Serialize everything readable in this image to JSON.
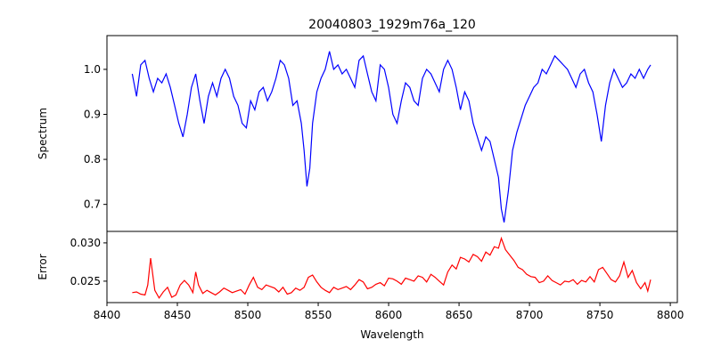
{
  "chart_data": {
    "type": "line",
    "title": "20040803_1929m76a_120",
    "xlabel": "Wavelength",
    "xlim": [
      8400,
      8805
    ],
    "xticks": [
      8400,
      8450,
      8500,
      8550,
      8600,
      8650,
      8700,
      8750,
      8800
    ],
    "panels": [
      {
        "name": "spectrum-panel",
        "ylabel": "Spectrum",
        "ylim": [
          0.64,
          1.075
        ],
        "yticks": [
          0.7,
          0.8,
          0.9,
          1.0
        ],
        "ytick_labels": [
          "0.7",
          "0.8",
          "0.9",
          "1.0"
        ],
        "color": "#0000ff",
        "x": [
          8418,
          8421,
          8424,
          8427,
          8430,
          8433,
          8436,
          8439,
          8442,
          8445,
          8448,
          8451,
          8454,
          8457,
          8460,
          8463,
          8466,
          8469,
          8472,
          8475,
          8478,
          8481,
          8484,
          8487,
          8490,
          8493,
          8496,
          8499,
          8502,
          8505,
          8508,
          8511,
          8514,
          8517,
          8520,
          8523,
          8526,
          8529,
          8532,
          8535,
          8538,
          8540,
          8542,
          8544,
          8546,
          8549,
          8552,
          8555,
          8558,
          8561,
          8564,
          8567,
          8570,
          8573,
          8576,
          8579,
          8582,
          8585,
          8588,
          8591,
          8594,
          8597,
          8600,
          8603,
          8606,
          8609,
          8612,
          8615,
          8618,
          8621,
          8624,
          8627,
          8630,
          8633,
          8636,
          8639,
          8642,
          8645,
          8648,
          8651,
          8654,
          8657,
          8660,
          8663,
          8666,
          8669,
          8672,
          8675,
          8678,
          8680,
          8682,
          8685,
          8688,
          8691,
          8694,
          8697,
          8700,
          8703,
          8706,
          8709,
          8712,
          8715,
          8718,
          8721,
          8724,
          8727,
          8730,
          8733,
          8736,
          8739,
          8742,
          8745,
          8748,
          8751,
          8754,
          8757,
          8760,
          8763,
          8766,
          8769,
          8772,
          8775,
          8778,
          8781,
          8784,
          8786
        ],
        "y": [
          0.99,
          0.94,
          1.01,
          1.02,
          0.98,
          0.95,
          0.98,
          0.97,
          0.99,
          0.96,
          0.92,
          0.88,
          0.85,
          0.9,
          0.96,
          0.99,
          0.93,
          0.88,
          0.94,
          0.97,
          0.94,
          0.98,
          1.0,
          0.98,
          0.94,
          0.92,
          0.88,
          0.87,
          0.93,
          0.91,
          0.95,
          0.96,
          0.93,
          0.95,
          0.98,
          1.02,
          1.01,
          0.98,
          0.92,
          0.93,
          0.88,
          0.82,
          0.74,
          0.78,
          0.88,
          0.95,
          0.98,
          1.0,
          1.04,
          1.0,
          1.01,
          0.99,
          1.0,
          0.98,
          0.96,
          1.02,
          1.03,
          0.99,
          0.95,
          0.93,
          1.01,
          1.0,
          0.96,
          0.9,
          0.88,
          0.93,
          0.97,
          0.96,
          0.93,
          0.92,
          0.98,
          1.0,
          0.99,
          0.97,
          0.95,
          1.0,
          1.02,
          1.0,
          0.96,
          0.91,
          0.95,
          0.93,
          0.88,
          0.85,
          0.82,
          0.85,
          0.84,
          0.8,
          0.76,
          0.69,
          0.66,
          0.73,
          0.82,
          0.86,
          0.89,
          0.92,
          0.94,
          0.96,
          0.97,
          1.0,
          0.99,
          1.01,
          1.03,
          1.02,
          1.01,
          1.0,
          0.98,
          0.96,
          0.99,
          1.0,
          0.97,
          0.95,
          0.9,
          0.84,
          0.92,
          0.97,
          1.0,
          0.98,
          0.96,
          0.97,
          0.99,
          0.98,
          1.0,
          0.98,
          1.0,
          1.01
        ]
      },
      {
        "name": "error-panel",
        "ylabel": "Error",
        "ylim": [
          0.0222,
          0.0315
        ],
        "yticks": [
          0.025,
          0.03
        ],
        "ytick_labels": [
          "0.025",
          "0.030"
        ],
        "color": "#ff0000",
        "x": [
          8418,
          8421,
          8424,
          8427,
          8429,
          8431,
          8434,
          8437,
          8440,
          8443,
          8446,
          8449,
          8452,
          8455,
          8458,
          8461,
          8463,
          8465,
          8468,
          8471,
          8474,
          8477,
          8480,
          8483,
          8486,
          8489,
          8492,
          8495,
          8498,
          8501,
          8504,
          8507,
          8510,
          8513,
          8516,
          8519,
          8522,
          8525,
          8528,
          8531,
          8534,
          8537,
          8540,
          8543,
          8546,
          8549,
          8552,
          8555,
          8558,
          8561,
          8564,
          8567,
          8570,
          8573,
          8576,
          8579,
          8582,
          8585,
          8588,
          8591,
          8594,
          8597,
          8600,
          8603,
          8606,
          8609,
          8612,
          8615,
          8618,
          8621,
          8624,
          8627,
          8630,
          8633,
          8636,
          8639,
          8642,
          8645,
          8648,
          8651,
          8654,
          8657,
          8660,
          8663,
          8666,
          8669,
          8672,
          8675,
          8678,
          8680,
          8683,
          8686,
          8689,
          8692,
          8695,
          8698,
          8701,
          8704,
          8707,
          8710,
          8713,
          8716,
          8719,
          8722,
          8725,
          8728,
          8731,
          8734,
          8737,
          8740,
          8743,
          8746,
          8749,
          8752,
          8755,
          8758,
          8761,
          8764,
          8767,
          8770,
          8773,
          8776,
          8779,
          8782,
          8784,
          8786
        ],
        "y": [
          0.0235,
          0.0236,
          0.0233,
          0.0232,
          0.0245,
          0.028,
          0.0238,
          0.0228,
          0.0236,
          0.0242,
          0.0229,
          0.0232,
          0.0245,
          0.0251,
          0.0245,
          0.0235,
          0.0262,
          0.0245,
          0.0234,
          0.0238,
          0.0235,
          0.0232,
          0.0236,
          0.0241,
          0.0238,
          0.0235,
          0.0237,
          0.0239,
          0.0233,
          0.0245,
          0.0255,
          0.0242,
          0.0239,
          0.0245,
          0.0243,
          0.0241,
          0.0236,
          0.0242,
          0.0233,
          0.0235,
          0.0241,
          0.0238,
          0.0242,
          0.0255,
          0.0258,
          0.0249,
          0.0242,
          0.0238,
          0.0235,
          0.0242,
          0.0239,
          0.0241,
          0.0243,
          0.0239,
          0.0245,
          0.0252,
          0.0249,
          0.024,
          0.0242,
          0.0246,
          0.0248,
          0.0244,
          0.0254,
          0.0253,
          0.025,
          0.0246,
          0.0254,
          0.0252,
          0.025,
          0.0257,
          0.0255,
          0.0249,
          0.0259,
          0.0255,
          0.025,
          0.0245,
          0.0262,
          0.0271,
          0.0266,
          0.0281,
          0.0279,
          0.0275,
          0.0285,
          0.0282,
          0.0276,
          0.0288,
          0.0284,
          0.0295,
          0.0293,
          0.0306,
          0.0291,
          0.0284,
          0.0277,
          0.0268,
          0.0265,
          0.0259,
          0.0256,
          0.0255,
          0.0248,
          0.025,
          0.0257,
          0.0251,
          0.0248,
          0.0245,
          0.025,
          0.0249,
          0.0252,
          0.0246,
          0.0251,
          0.0249,
          0.0256,
          0.0249,
          0.0265,
          0.0268,
          0.026,
          0.0252,
          0.0249,
          0.0257,
          0.0275,
          0.0255,
          0.0264,
          0.0248,
          0.024,
          0.0248,
          0.0237,
          0.0252
        ]
      }
    ],
    "grid": false,
    "legend": "none"
  }
}
